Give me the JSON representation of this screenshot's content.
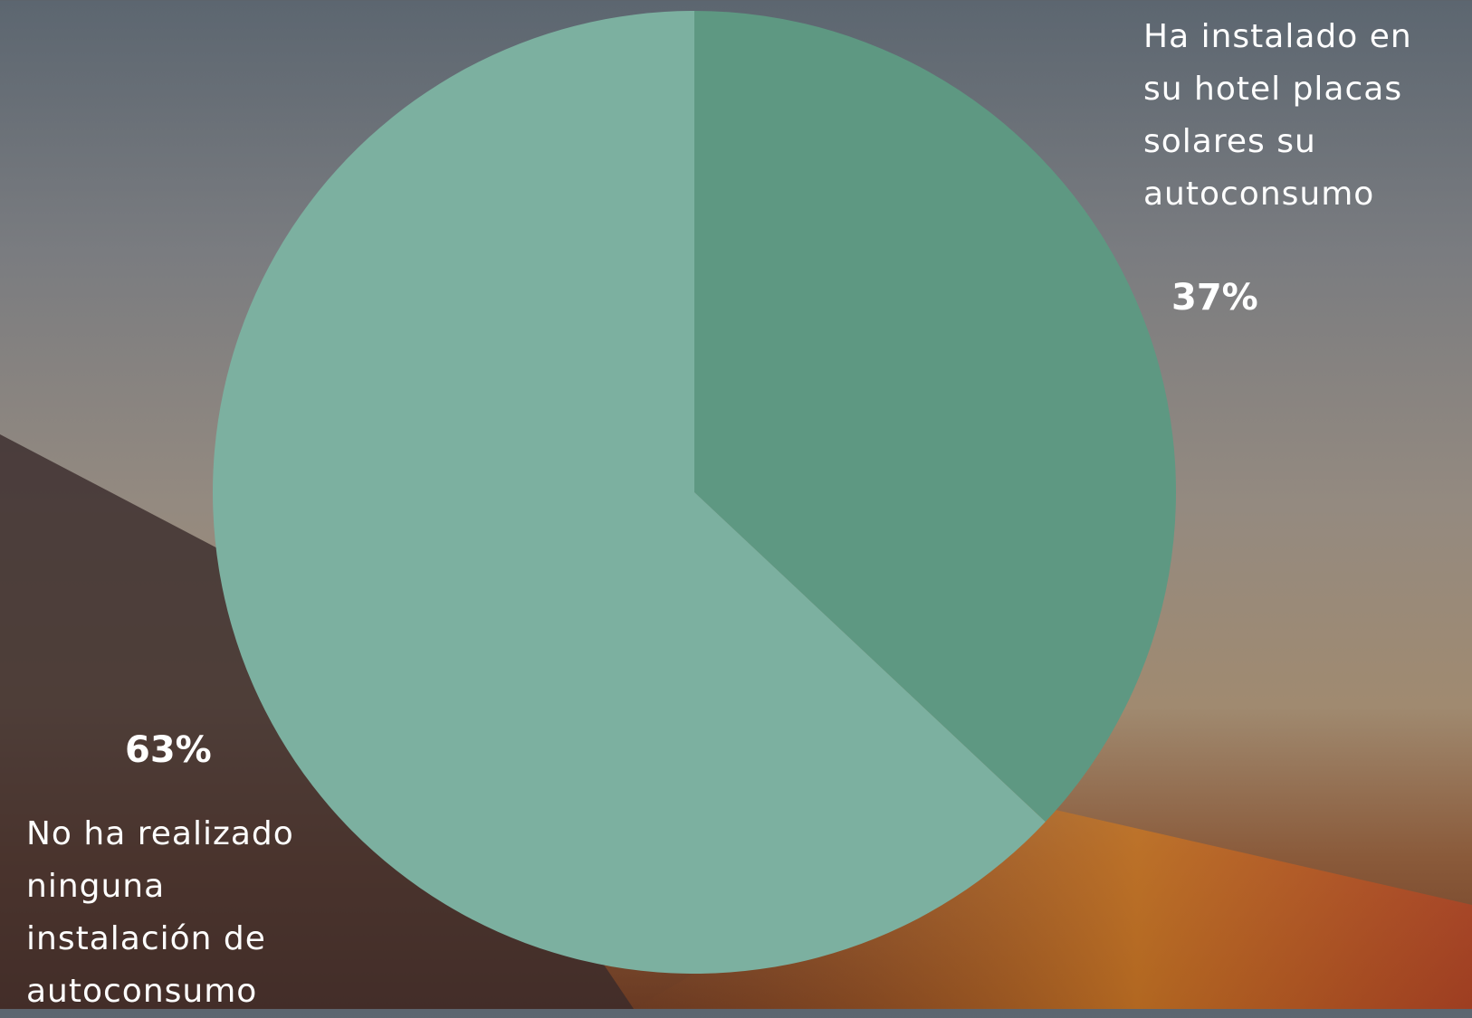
{
  "chart_data": {
    "type": "pie",
    "categories": [
      "Ha instalado en su hotel placas solares su autoconsumo",
      "No ha realizado ninguna instalación de autoconsumo"
    ],
    "values": [
      37,
      63
    ],
    "value_labels": [
      "37%",
      "63%"
    ],
    "colors": [
      "#5e9882",
      "#7cb0a0"
    ]
  }
}
